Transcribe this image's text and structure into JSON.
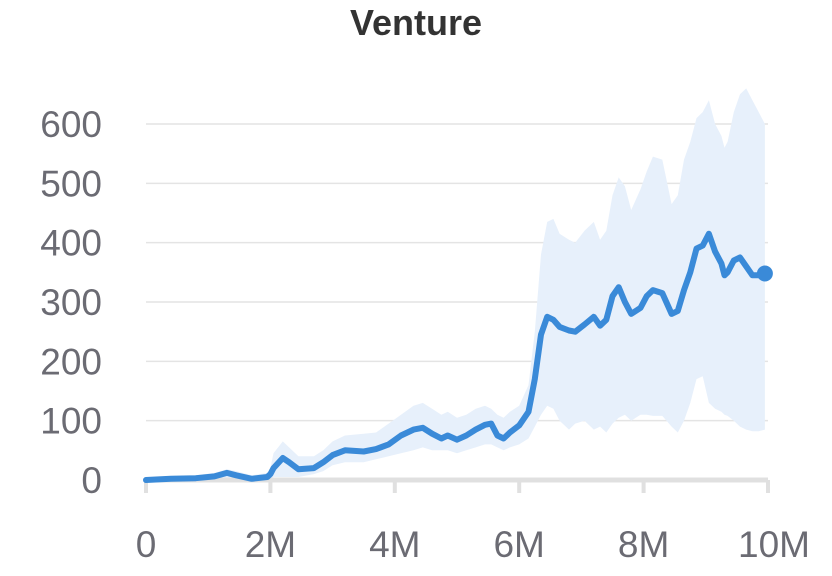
{
  "chart_data": {
    "type": "line",
    "title": "Venture",
    "xlabel": "",
    "ylabel": "",
    "xlim": [
      0,
      10000000
    ],
    "ylim": [
      0,
      600
    ],
    "x_ticks": [
      0,
      2000000,
      4000000,
      6000000,
      8000000,
      10000000
    ],
    "x_tick_labels": [
      "0",
      "2M",
      "4M",
      "6M",
      "8M",
      "10M"
    ],
    "y_ticks": [
      0,
      100,
      200,
      300,
      400,
      500,
      600
    ],
    "y_tick_labels": [
      "0",
      "100",
      "200",
      "300",
      "400",
      "500",
      "600"
    ],
    "grid": true,
    "legend": "none",
    "colors": {
      "line": "#3a8ad8",
      "band": "#e7f0fb",
      "grid": "#e4e4e4",
      "axis": "#e0e0e0"
    },
    "series": [
      {
        "x": [
          0,
          400000,
          800000,
          1100000,
          1300000,
          1450000,
          1700000,
          1950000,
          2000000,
          2050000,
          2200000,
          2300000,
          2450000,
          2700000,
          2850000,
          3000000,
          3200000,
          3500000,
          3700000,
          3900000,
          4100000,
          4300000,
          4450000,
          4600000,
          4750000,
          4850000,
          5000000,
          5150000,
          5300000,
          5450000,
          5550000,
          5650000,
          5750000,
          5850000,
          6000000,
          6150000,
          6250000,
          6350000,
          6450000,
          6550000,
          6650000,
          6800000,
          6900000,
          7050000,
          7200000,
          7300000,
          7400000,
          7500000,
          7600000,
          7700000,
          7800000,
          7950000,
          8050000,
          8150000,
          8300000,
          8450000,
          8550000,
          8650000,
          8750000,
          8850000,
          8950000,
          9050000,
          9150000,
          9250000,
          9300000,
          9350000,
          9450000,
          9550000,
          9650000,
          9750000,
          9850000,
          9950000
        ],
        "y": [
          0,
          2,
          3,
          6,
          12,
          8,
          2,
          5,
          10,
          20,
          37,
          30,
          18,
          20,
          30,
          42,
          50,
          48,
          52,
          60,
          75,
          85,
          88,
          78,
          70,
          75,
          68,
          75,
          85,
          93,
          95,
          75,
          70,
          80,
          92,
          115,
          170,
          245,
          275,
          270,
          258,
          252,
          250,
          262,
          275,
          260,
          270,
          310,
          325,
          300,
          280,
          290,
          310,
          320,
          315,
          280,
          285,
          320,
          350,
          390,
          395,
          415,
          385,
          365,
          345,
          350,
          370,
          375,
          360,
          345,
          345,
          348
        ],
        "lower": [
          0,
          0,
          0,
          0,
          0,
          0,
          0,
          0,
          0,
          5,
          5,
          5,
          5,
          10,
          15,
          25,
          30,
          30,
          35,
          40,
          45,
          50,
          55,
          50,
          50,
          50,
          45,
          50,
          55,
          60,
          60,
          55,
          50,
          55,
          60,
          70,
          90,
          110,
          125,
          120,
          100,
          85,
          95,
          100,
          85,
          90,
          80,
          95,
          105,
          110,
          100,
          110,
          110,
          108,
          108,
          90,
          80,
          100,
          130,
          170,
          175,
          130,
          120,
          115,
          110,
          108,
          100,
          90,
          85,
          82,
          82,
          85
        ],
        "upper": [
          0,
          5,
          8,
          12,
          18,
          15,
          8,
          12,
          20,
          45,
          65,
          55,
          40,
          40,
          50,
          65,
          75,
          78,
          80,
          95,
          110,
          125,
          130,
          120,
          110,
          115,
          105,
          110,
          120,
          125,
          120,
          110,
          105,
          115,
          125,
          160,
          250,
          380,
          435,
          440,
          415,
          405,
          400,
          420,
          435,
          405,
          420,
          480,
          510,
          495,
          455,
          490,
          520,
          545,
          540,
          465,
          480,
          540,
          570,
          610,
          620,
          640,
          600,
          580,
          560,
          570,
          620,
          650,
          660,
          640,
          620,
          600
        ]
      }
    ]
  }
}
